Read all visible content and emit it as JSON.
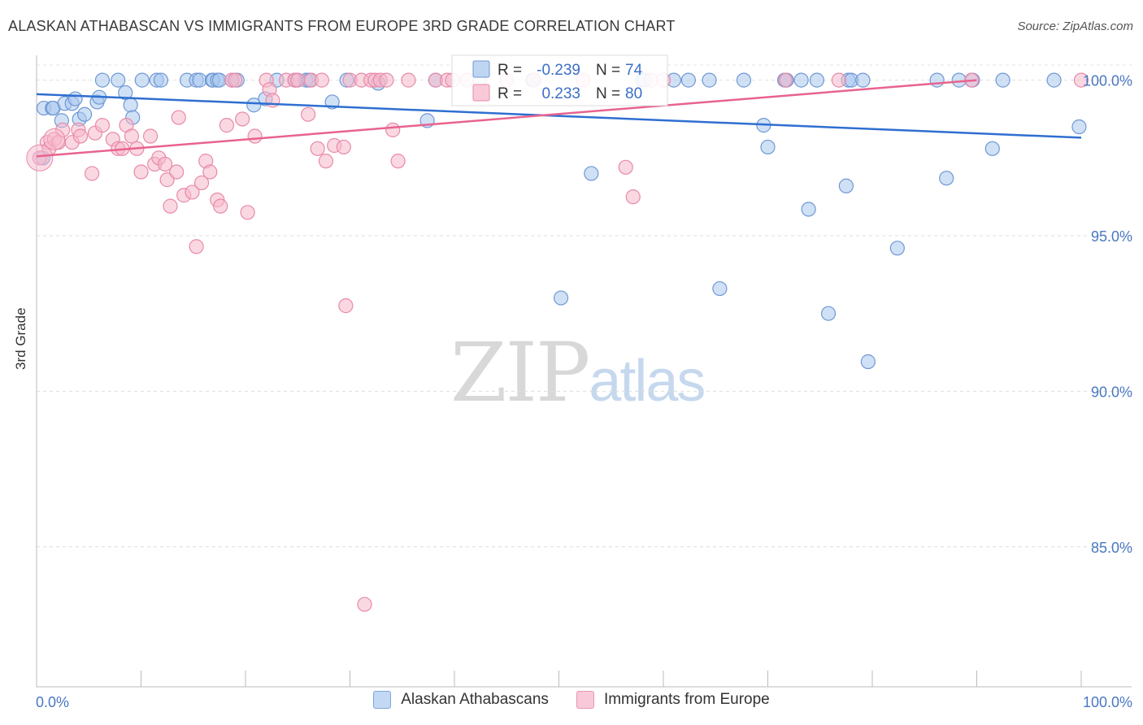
{
  "title": "ALASKAN ATHABASCAN VS IMMIGRANTS FROM EUROPE 3RD GRADE CORRELATION CHART",
  "source": "Source: ZipAtlas.com",
  "watermark": {
    "zip": "ZIP",
    "atlas": "atlas"
  },
  "stats": [
    {
      "r_label": "R =",
      "r_value": "-0.239",
      "n_label": "N =",
      "n_value": "74"
    },
    {
      "r_label": "R =",
      "r_value": "0.233",
      "n_label": "N =",
      "n_value": "80"
    }
  ],
  "chart_data": {
    "type": "scatter",
    "title": "ALASKAN ATHABASCAN VS IMMIGRANTS FROM EUROPE 3RD GRADE CORRELATION CHART",
    "xlabel": "",
    "ylabel": "3rd Grade",
    "xlim": [
      0,
      100
    ],
    "ylim": [
      80.5,
      100.8
    ],
    "x_tick_labels": [
      "0.0%",
      "100.0%"
    ],
    "y_ticks": [
      85,
      90,
      95,
      100
    ],
    "y_tick_labels": [
      "85.0%",
      "90.0%",
      "95.0%",
      "100.0%"
    ],
    "grid": true,
    "legend_position": "bottom",
    "colors": {
      "blue_fill": "#aac8ee",
      "blue_stroke": "#6f98d4",
      "blue_line": "#2f6fd0",
      "pink_fill": "#f6b8cb",
      "pink_stroke": "#e88aa8",
      "pink_line": "#e8638e"
    },
    "series": [
      {
        "name": "Alaskan Athabascans",
        "r": -0.239,
        "n": 74,
        "trend": [
          [
            0,
            99.55
          ],
          [
            100,
            98.15
          ]
        ],
        "points": [
          [
            0.6,
            97.5
          ],
          [
            0.7,
            99.1
          ],
          [
            1.5,
            99.1
          ],
          [
            1.6,
            99.1
          ],
          [
            2.4,
            98.7
          ],
          [
            2.7,
            99.25
          ],
          [
            3.4,
            99.25
          ],
          [
            3.7,
            99.4
          ],
          [
            4.1,
            98.75
          ],
          [
            4.6,
            98.9
          ],
          [
            5.8,
            99.3
          ],
          [
            6.0,
            99.45
          ],
          [
            6.3,
            100
          ],
          [
            7.8,
            100
          ],
          [
            8.5,
            99.6
          ],
          [
            9.0,
            99.2
          ],
          [
            9.2,
            98.8
          ],
          [
            10.1,
            100
          ],
          [
            11.5,
            100
          ],
          [
            11.9,
            100
          ],
          [
            14.4,
            100
          ],
          [
            15.3,
            100
          ],
          [
            15.6,
            100
          ],
          [
            16.8,
            100
          ],
          [
            16.9,
            100
          ],
          [
            17.3,
            100
          ],
          [
            17.5,
            100
          ],
          [
            18.7,
            100
          ],
          [
            19.2,
            100
          ],
          [
            20.8,
            99.2
          ],
          [
            21.9,
            99.4
          ],
          [
            23.0,
            100
          ],
          [
            24.8,
            100
          ],
          [
            25.8,
            100
          ],
          [
            26.1,
            100
          ],
          [
            28.3,
            99.3
          ],
          [
            29.7,
            100
          ],
          [
            32.7,
            99.9
          ],
          [
            37.4,
            98.7
          ],
          [
            38.2,
            100
          ],
          [
            42.4,
            100
          ],
          [
            47.5,
            100
          ],
          [
            47.6,
            100
          ],
          [
            50.2,
            93.0
          ],
          [
            53.1,
            97.0
          ],
          [
            58.0,
            100
          ],
          [
            58.2,
            100
          ],
          [
            61.0,
            100
          ],
          [
            62.4,
            100
          ],
          [
            64.4,
            100
          ],
          [
            65.4,
            93.3
          ],
          [
            67.7,
            100
          ],
          [
            69.6,
            98.55
          ],
          [
            70.0,
            97.85
          ],
          [
            71.6,
            100
          ],
          [
            71.8,
            100
          ],
          [
            73.2,
            100
          ],
          [
            73.9,
            95.85
          ],
          [
            74.7,
            100
          ],
          [
            75.8,
            92.5
          ],
          [
            77.5,
            96.6
          ],
          [
            77.7,
            100
          ],
          [
            78.0,
            100
          ],
          [
            79.1,
            100
          ],
          [
            79.6,
            90.95
          ],
          [
            82.4,
            94.6
          ],
          [
            86.2,
            100
          ],
          [
            87.1,
            96.85
          ],
          [
            88.3,
            100
          ],
          [
            89.6,
            100
          ],
          [
            91.5,
            97.8
          ],
          [
            92.5,
            100
          ],
          [
            97.4,
            100
          ],
          [
            99.8,
            98.5
          ]
        ]
      },
      {
        "name": "Immigrants from Europe",
        "r": 0.233,
        "n": 80,
        "trend": [
          [
            0,
            97.55
          ],
          [
            90,
            100.0
          ]
        ],
        "points": [
          [
            0.3,
            97.5
          ],
          [
            1.0,
            98.0
          ],
          [
            1.2,
            97.8
          ],
          [
            1.7,
            98.1
          ],
          [
            2.1,
            98.0
          ],
          [
            2.5,
            98.4
          ],
          [
            3.4,
            98.0
          ],
          [
            4.0,
            98.4
          ],
          [
            4.2,
            98.2
          ],
          [
            5.3,
            97.0
          ],
          [
            5.6,
            98.3
          ],
          [
            6.3,
            98.55
          ],
          [
            7.3,
            98.1
          ],
          [
            7.8,
            97.8
          ],
          [
            8.2,
            97.8
          ],
          [
            8.6,
            98.55
          ],
          [
            9.1,
            98.2
          ],
          [
            9.6,
            97.8
          ],
          [
            10.0,
            97.05
          ],
          [
            10.9,
            98.2
          ],
          [
            11.3,
            97.3
          ],
          [
            11.7,
            97.5
          ],
          [
            12.3,
            97.3
          ],
          [
            12.5,
            96.8
          ],
          [
            12.8,
            95.95
          ],
          [
            13.4,
            97.05
          ],
          [
            13.6,
            98.8
          ],
          [
            14.1,
            96.3
          ],
          [
            14.9,
            96.4
          ],
          [
            15.3,
            94.65
          ],
          [
            15.8,
            96.7
          ],
          [
            16.2,
            97.4
          ],
          [
            16.6,
            97.05
          ],
          [
            17.3,
            96.15
          ],
          [
            17.6,
            95.95
          ],
          [
            18.2,
            98.55
          ],
          [
            18.7,
            100
          ],
          [
            19.0,
            100
          ],
          [
            19.7,
            98.75
          ],
          [
            20.2,
            95.75
          ],
          [
            20.9,
            98.2
          ],
          [
            22.0,
            100
          ],
          [
            22.3,
            99.7
          ],
          [
            22.6,
            99.35
          ],
          [
            23.9,
            100
          ],
          [
            24.7,
            100
          ],
          [
            25.0,
            100
          ],
          [
            26.0,
            98.9
          ],
          [
            26.3,
            100
          ],
          [
            26.9,
            97.8
          ],
          [
            27.3,
            100
          ],
          [
            27.7,
            97.4
          ],
          [
            28.5,
            97.9
          ],
          [
            29.4,
            97.85
          ],
          [
            29.6,
            92.75
          ],
          [
            30.0,
            100
          ],
          [
            31.1,
            100
          ],
          [
            31.4,
            83.15
          ],
          [
            32.0,
            100
          ],
          [
            32.4,
            100
          ],
          [
            32.9,
            100
          ],
          [
            33.5,
            100
          ],
          [
            34.1,
            98.4
          ],
          [
            34.6,
            97.4
          ],
          [
            35.6,
            100
          ],
          [
            38.2,
            100
          ],
          [
            39.3,
            100
          ],
          [
            39.8,
            100
          ],
          [
            41.2,
            100
          ],
          [
            45.0,
            100
          ],
          [
            47.6,
            100
          ],
          [
            52.3,
            100
          ],
          [
            56.4,
            97.2
          ],
          [
            57.1,
            96.25
          ],
          [
            58.8,
            100
          ],
          [
            60.0,
            100
          ],
          [
            71.7,
            100
          ],
          [
            76.8,
            100
          ],
          [
            89.5,
            100
          ],
          [
            100.0,
            100
          ]
        ]
      }
    ]
  }
}
